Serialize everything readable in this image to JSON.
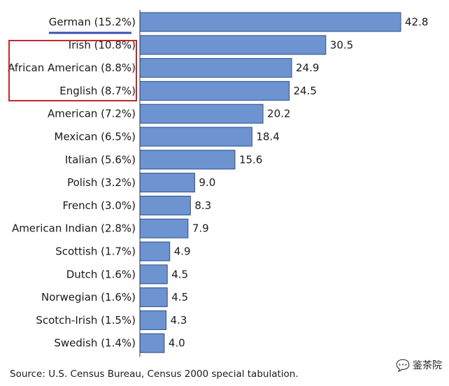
{
  "chart_data": {
    "type": "bar",
    "orientation": "horizontal",
    "categories": [
      "German (15.2%)",
      "Irish (10.8%)",
      "African American (8.8%)",
      "English (8.7%)",
      "American (7.2%)",
      "Mexican (6.5%)",
      "Italian (5.6%)",
      "Polish (3.2%)",
      "French (3.0%)",
      "American Indian (2.8%)",
      "Scottish (1.7%)",
      "Dutch (1.6%)",
      "Norwegian (1.6%)",
      "Scotch-Irish (1.5%)",
      "Swedish  (1.4%)"
    ],
    "values": [
      42.8,
      30.5,
      24.9,
      24.5,
      20.2,
      18.4,
      15.6,
      9.0,
      8.3,
      7.9,
      4.9,
      4.5,
      4.5,
      4.3,
      4.0
    ],
    "value_labels": [
      "42.8",
      "30.5",
      "24.9",
      "24.5",
      "20.2",
      "18.4",
      "15.6",
      "9.0",
      "8.3",
      "7.9",
      "4.9",
      "4.5",
      "4.5",
      "4.3",
      "4.0"
    ],
    "xlim": [
      0,
      42.8
    ],
    "grid": false,
    "bar_color": "#6d93d1",
    "bar_edge_color": "#2b4f8c",
    "highlight_underline_color": "#3b4fb5",
    "highlight_box_color": "#c0282d",
    "source": "Source:  U.S. Census Bureau, Census 2000 special tabulation."
  },
  "watermark": {
    "icon": "wechat-icon",
    "text": "鉴茶院"
  }
}
